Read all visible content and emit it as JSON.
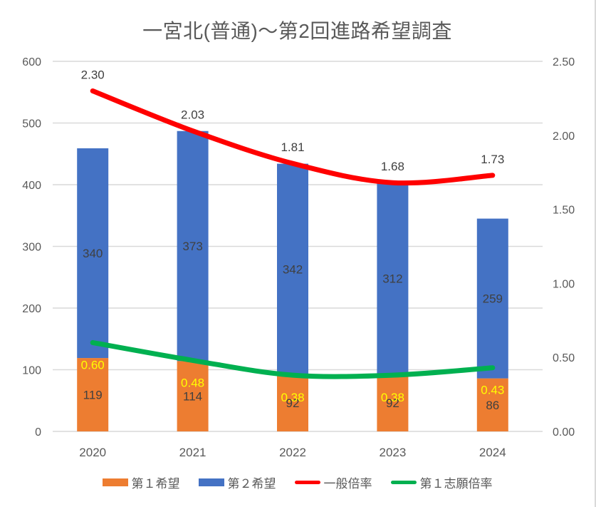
{
  "chart_data": {
    "type": "combo-stacked-bar-line",
    "title": "一宮北(普通)～第2回進路希望調査",
    "categories": [
      "2020",
      "2021",
      "2022",
      "2023",
      "2024"
    ],
    "bar_series": [
      {
        "id": "first-choice",
        "name": "第１希望",
        "color": "#ED7D31",
        "axis": "left",
        "values": [
          119,
          114,
          92,
          92,
          86
        ],
        "labels": [
          "119",
          "114",
          "92",
          "92",
          "86"
        ],
        "label_color": "#404040"
      },
      {
        "id": "second-choice",
        "name": "第２希望",
        "color": "#4472C4",
        "axis": "left",
        "values": [
          340,
          373,
          342,
          312,
          259
        ],
        "labels": [
          "340",
          "373",
          "342",
          "312",
          "259"
        ],
        "label_color": "#404040"
      }
    ],
    "line_series": [
      {
        "id": "general-rate",
        "name": "一般倍率",
        "color": "#FF0000",
        "axis": "right",
        "values": [
          2.3,
          2.03,
          1.81,
          1.68,
          1.73
        ],
        "labels": [
          "2.30",
          "2.03",
          "1.81",
          "1.68",
          "1.73"
        ],
        "label_color": "#404040",
        "label_position": "above",
        "smooth": true
      },
      {
        "id": "first-application-rate",
        "name": "第１志願倍率",
        "color": "#00B050",
        "axis": "right",
        "values": [
          0.6,
          0.48,
          0.38,
          0.38,
          0.43
        ],
        "labels": [
          "0.60",
          "0.48",
          "0.38",
          "0.38",
          "0.43"
        ],
        "label_color": "#FFFF00",
        "label_position": "below",
        "smooth": true
      }
    ],
    "left_axis": {
      "min": 0,
      "max": 600,
      "ticks": [
        "0",
        "100",
        "200",
        "300",
        "400",
        "500",
        "600"
      ]
    },
    "right_axis": {
      "min": 0,
      "max": 2.5,
      "ticks": [
        "0.00",
        "0.50",
        "1.00",
        "1.50",
        "2.00",
        "2.50"
      ]
    },
    "grid": true,
    "legend_position": "bottom",
    "colors": {
      "grid": "#D9D9D9",
      "axis_text": "#595959",
      "background": "#FFFFFF"
    }
  }
}
